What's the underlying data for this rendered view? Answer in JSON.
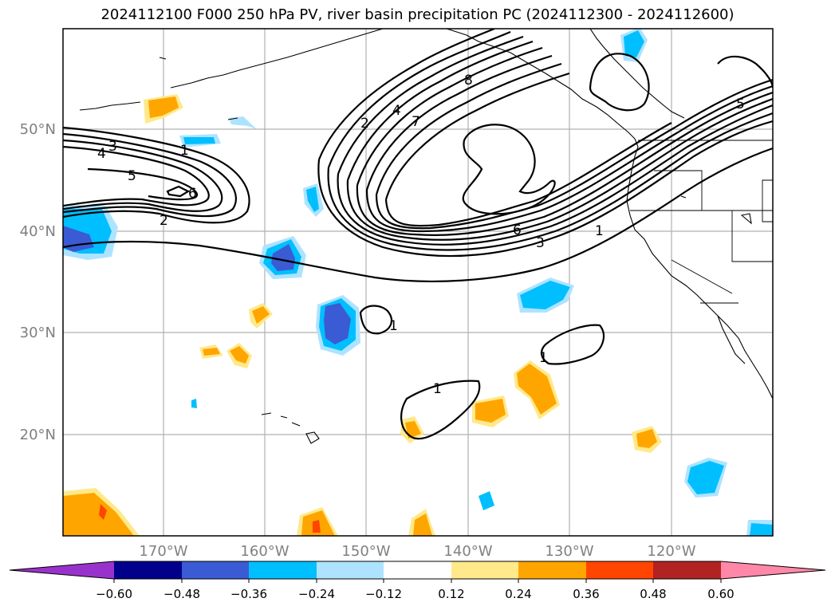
{
  "title": "2024112100 F000 250 hPa PV, river basin precipitation PC (2024112300 - 2024112600)",
  "map": {
    "lon_ticks": [
      "170°W",
      "160°W",
      "150°W",
      "140°W",
      "130°W",
      "120°W"
    ],
    "lat_ticks": [
      "50°N",
      "40°N",
      "30°N",
      "20°N"
    ],
    "gridlines": true,
    "contour_labels": [
      {
        "name": "pv-label-1-w",
        "text": "1"
      },
      {
        "name": "pv-label-2-w",
        "text": "2"
      },
      {
        "name": "pv-label-3-w",
        "text": "3"
      },
      {
        "name": "pv-label-4-w",
        "text": "4"
      },
      {
        "name": "pv-label-5-w",
        "text": "5"
      },
      {
        "name": "pv-label-6-w",
        "text": "6"
      },
      {
        "name": "pv-label-2-n",
        "text": "2"
      },
      {
        "name": "pv-label-4-n",
        "text": "4"
      },
      {
        "name": "pv-label-7-n",
        "text": "7"
      },
      {
        "name": "pv-label-8-n",
        "text": "8"
      },
      {
        "name": "pv-label-6-s",
        "text": "6"
      },
      {
        "name": "pv-label-3-s",
        "text": "3"
      },
      {
        "name": "pv-label-1-s",
        "text": "1"
      },
      {
        "name": "pv-label-5-e",
        "text": "5"
      },
      {
        "name": "pv-label-1-c",
        "text": "1"
      },
      {
        "name": "pv-label-1-d",
        "text": "1"
      },
      {
        "name": "pv-label-1-t",
        "text": "1"
      }
    ]
  },
  "colorbar": {
    "colors": [
      "#9932cc",
      "#00008b",
      "#3a5bd3",
      "#00bfff",
      "#aee3ff",
      "#ffffff",
      "#ffe98a",
      "#ffa500",
      "#ff4500",
      "#b22222",
      "#ff88a8"
    ],
    "tick_labels": [
      "−0.60",
      "−0.48",
      "−0.36",
      "−0.24",
      "−0.12",
      "0.12",
      "0.24",
      "0.36",
      "0.48",
      "0.60"
    ]
  }
}
